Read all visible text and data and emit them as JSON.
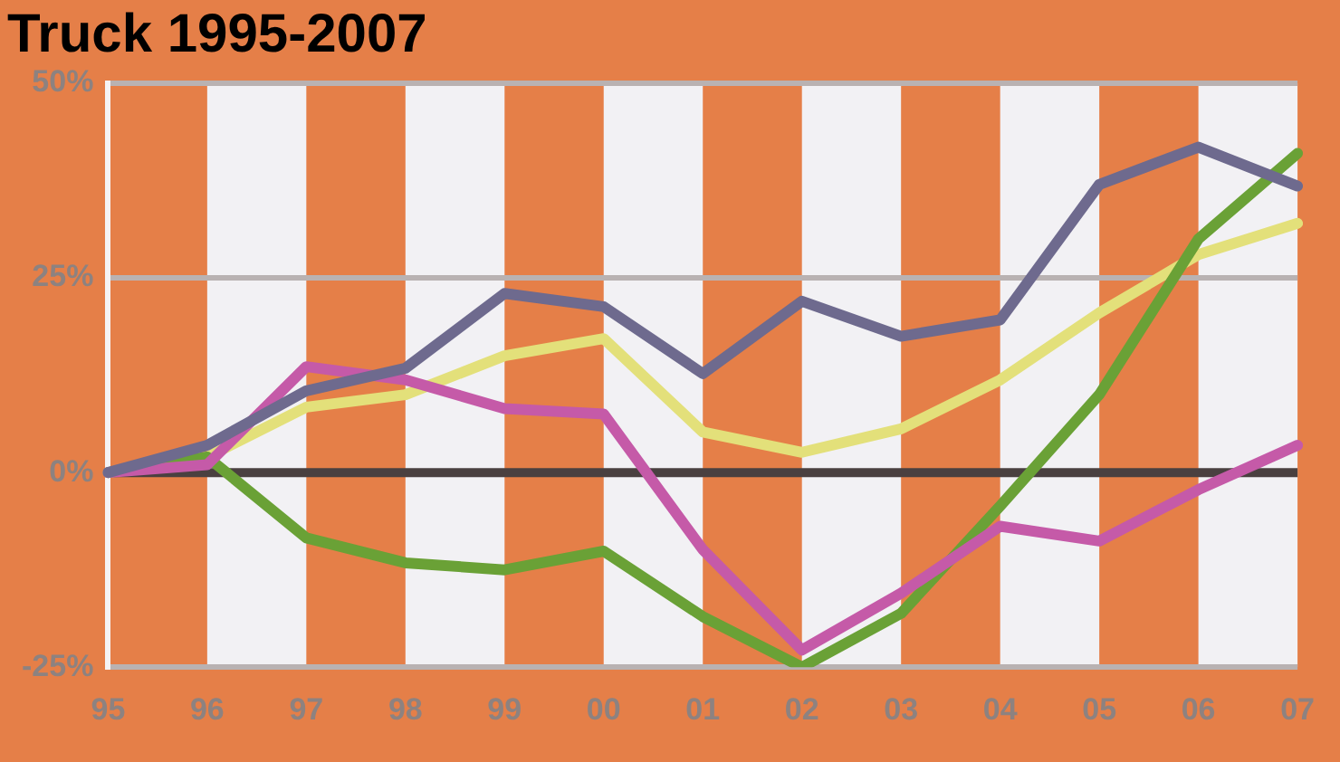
{
  "chart_data": {
    "type": "line",
    "title": "Truck 1995-2007",
    "categories": [
      "95",
      "96",
      "97",
      "98",
      "99",
      "00",
      "01",
      "02",
      "03",
      "04",
      "05",
      "06",
      "07"
    ],
    "series": [
      {
        "color": "#6e6a8e",
        "values": [
          0,
          3.5,
          10.5,
          13.4,
          23,
          21.3,
          12.7,
          22,
          17.5,
          19.6,
          37,
          41.8,
          36.8
        ]
      },
      {
        "color": "#c55aa8",
        "values": [
          0,
          1,
          13.6,
          11.9,
          8.2,
          7.5,
          -9.9,
          -22.8,
          -15.5,
          -6.9,
          -8.8,
          -2.2,
          3.5
        ]
      },
      {
        "color": "#6aa136",
        "values": [
          0,
          2,
          -8.4,
          -11.6,
          -12.5,
          -10.1,
          -18.5,
          -25,
          -18.1,
          -4.3,
          10,
          30,
          41
        ]
      },
      {
        "color": "#e3e07a",
        "values": [
          0,
          2,
          8.4,
          10,
          15,
          17.2,
          5.2,
          2.6,
          5.6,
          11.9,
          20.5,
          28,
          32
        ]
      }
    ],
    "ylim": [
      -25,
      50
    ],
    "yticks": [
      {
        "value": -25,
        "label": "-25%"
      },
      {
        "value": 0,
        "label": "0%"
      },
      {
        "value": 25,
        "label": "25%"
      },
      {
        "value": 50,
        "label": "50%"
      }
    ],
    "ref_lines": [
      {
        "axis": "y",
        "value": 0,
        "color": "#4a4040"
      }
    ],
    "bands": [
      {
        "axis": "x",
        "from": "96",
        "to": "97",
        "color": "#f2f1f4"
      },
      {
        "axis": "x",
        "from": "98",
        "to": "99",
        "color": "#f2f1f4"
      },
      {
        "axis": "x",
        "from": "00",
        "to": "01",
        "color": "#f2f1f4"
      },
      {
        "axis": "x",
        "from": "02",
        "to": "03",
        "color": "#f2f1f4"
      },
      {
        "axis": "x",
        "from": "04",
        "to": "05",
        "color": "#f2f1f4"
      },
      {
        "axis": "x",
        "from": "06",
        "to": "07",
        "color": "#f2f1f4"
      }
    ],
    "grid": "y",
    "legend": false,
    "marker": "none",
    "line_style": "solid"
  }
}
